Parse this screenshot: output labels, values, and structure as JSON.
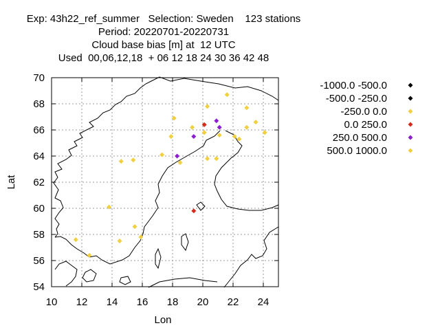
{
  "header": {
    "line1": "Exp: 43h22_ref_summer   Selection: Sweden    123 stations",
    "line2": "Period: 20220701-20220731",
    "line3": "Cloud base bias [m] at  12 UTC",
    "line4": "Used  00,06,12,18  + 06 12 18 24 30 36 42 48"
  },
  "chart_data": {
    "type": "scatter",
    "xlabel": "Lon",
    "ylabel": "Lat",
    "xlim": [
      10,
      25
    ],
    "ylim": [
      54,
      70
    ],
    "xticks": [
      "10",
      "12",
      "14",
      "16",
      "18",
      "20",
      "22",
      "24"
    ],
    "yticks": [
      "54",
      "56",
      "58",
      "60",
      "62",
      "64",
      "66",
      "68",
      "70"
    ],
    "grid": true,
    "legend_position": "right",
    "legend": [
      {
        "label": "-1000.0 -500.0",
        "color": "#000000"
      },
      {
        "label": "-500.0 -250.0",
        "color": "#000000"
      },
      {
        "label": "-250.0 0.0",
        "color": "#f0d040"
      },
      {
        "label": "0.0 250.0",
        "color": "#d42b1c"
      },
      {
        "label": "250.0 500.0",
        "color": "#8a1fd0"
      },
      {
        "label": "500.0 1000.0",
        "color": "#f0d040"
      }
    ],
    "points": [
      {
        "lon": 21.6,
        "lat": 68.7,
        "bin": 2
      },
      {
        "lon": 20.3,
        "lat": 67.8,
        "bin": 2
      },
      {
        "lon": 22.9,
        "lat": 67.7,
        "bin": 2
      },
      {
        "lon": 18.1,
        "lat": 66.9,
        "bin": 2
      },
      {
        "lon": 20.9,
        "lat": 66.7,
        "bin": 4
      },
      {
        "lon": 23.5,
        "lat": 66.6,
        "bin": 2
      },
      {
        "lon": 20.1,
        "lat": 66.4,
        "bin": 3
      },
      {
        "lon": 21.1,
        "lat": 66.2,
        "bin": 4
      },
      {
        "lon": 19.3,
        "lat": 66.2,
        "bin": 2
      },
      {
        "lon": 22.9,
        "lat": 66.2,
        "bin": 2
      },
      {
        "lon": 20.1,
        "lat": 65.8,
        "bin": 2
      },
      {
        "lon": 24.1,
        "lat": 65.8,
        "bin": 2
      },
      {
        "lon": 21.1,
        "lat": 65.6,
        "bin": 2
      },
      {
        "lon": 22.1,
        "lat": 65.5,
        "bin": 2
      },
      {
        "lon": 17.9,
        "lat": 65.5,
        "bin": 2
      },
      {
        "lon": 19.4,
        "lat": 65.5,
        "bin": 4
      },
      {
        "lon": 22.4,
        "lat": 65.3,
        "bin": 2
      },
      {
        "lon": 17.3,
        "lat": 64.1,
        "bin": 2
      },
      {
        "lon": 18.3,
        "lat": 64.0,
        "bin": 4
      },
      {
        "lon": 20.3,
        "lat": 63.8,
        "bin": 2
      },
      {
        "lon": 20.9,
        "lat": 63.8,
        "bin": 2
      },
      {
        "lon": 15.4,
        "lat": 63.7,
        "bin": 2
      },
      {
        "lon": 14.6,
        "lat": 63.6,
        "bin": 2
      },
      {
        "lon": 18.5,
        "lat": 63.5,
        "bin": 2
      },
      {
        "lon": 13.8,
        "lat": 60.1,
        "bin": 2
      },
      {
        "lon": 19.4,
        "lat": 59.8,
        "bin": 3
      },
      {
        "lon": 15.5,
        "lat": 58.6,
        "bin": 2
      },
      {
        "lon": 15.9,
        "lat": 57.8,
        "bin": 2
      },
      {
        "lon": 11.6,
        "lat": 57.6,
        "bin": 2
      },
      {
        "lon": 14.5,
        "lat": 57.5,
        "bin": 2
      },
      {
        "lon": 12.5,
        "lat": 56.4,
        "bin": 2
      }
    ]
  }
}
